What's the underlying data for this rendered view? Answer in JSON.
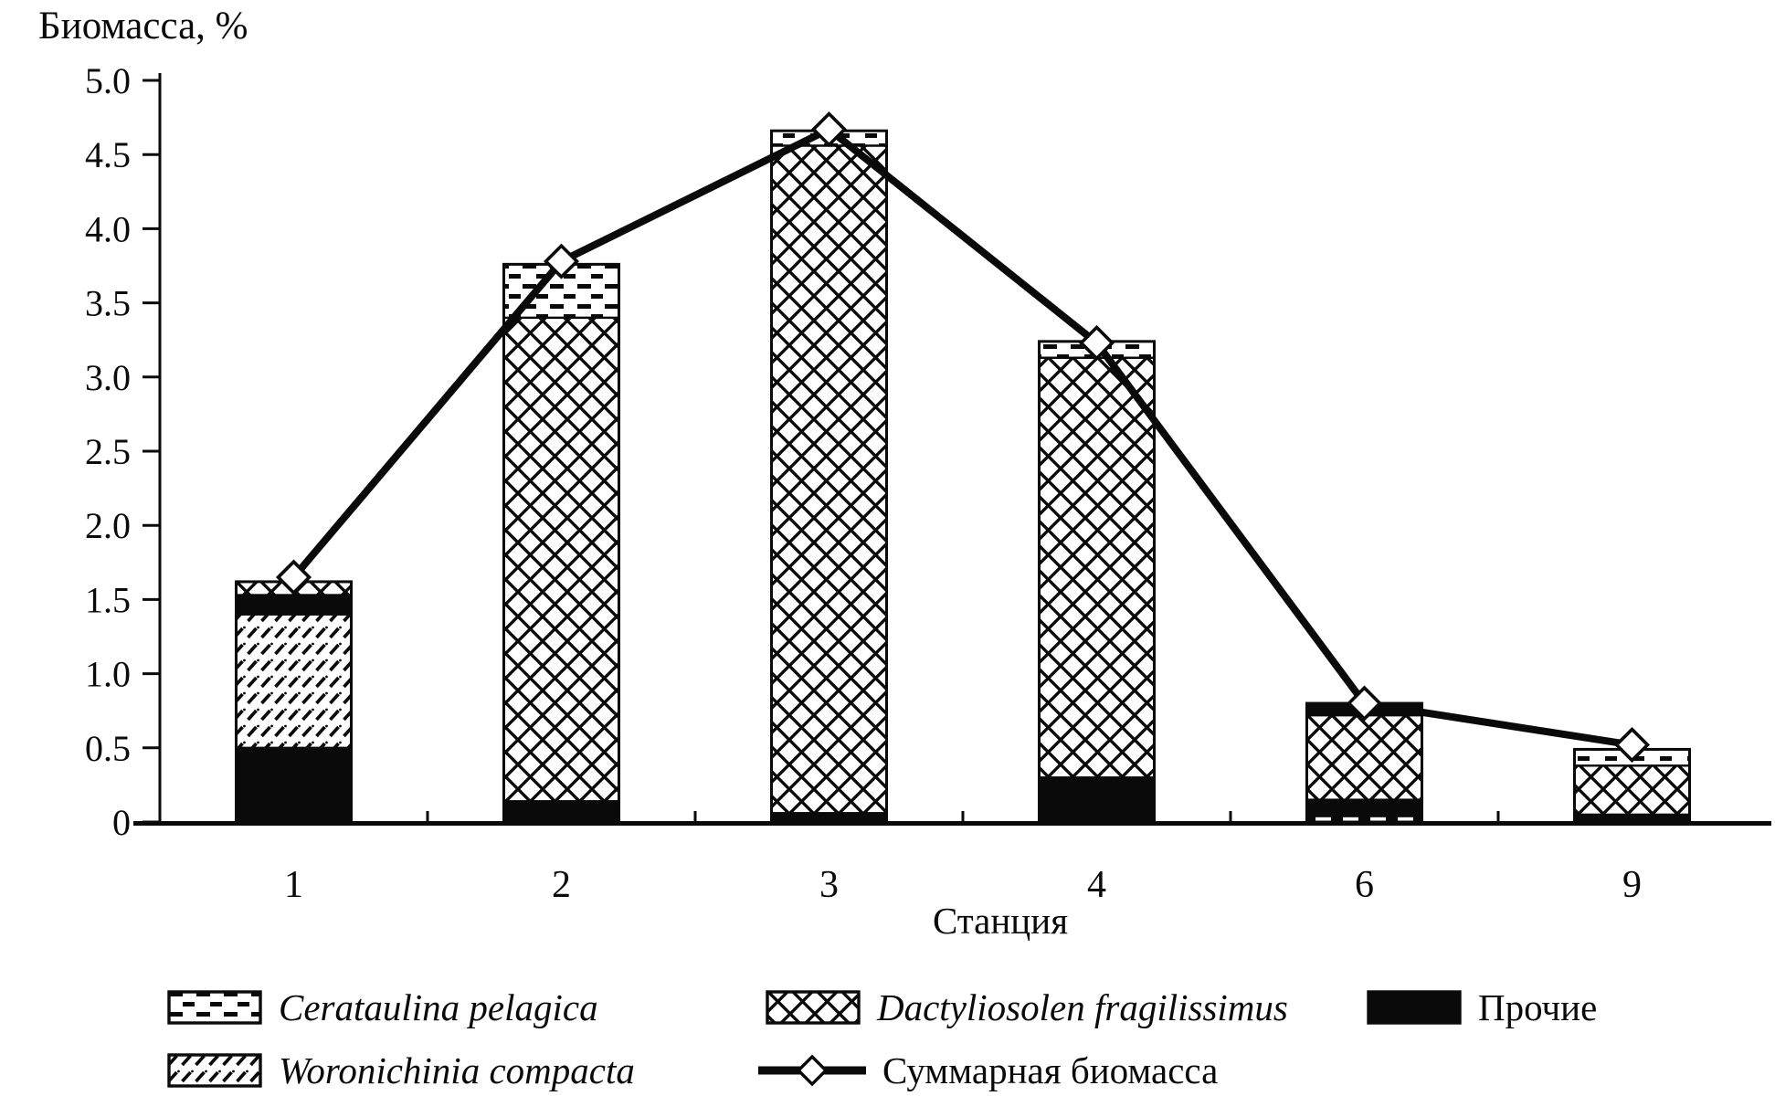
{
  "figure_title": "Биомасса, %",
  "chart_data": {
    "type": "bar",
    "subtype": "stacked-bar-with-total-line",
    "title": "Биомасса, %",
    "xlabel": "Станция",
    "ylabel": "Биомасса, %",
    "categories": [
      "1",
      "2",
      "3",
      "4",
      "6",
      "9"
    ],
    "ylim": [
      0,
      5.0
    ],
    "ytick_step": 0.5,
    "yticks": [
      {
        "label": "5.0",
        "value": 5.0
      },
      {
        "label": "4.5",
        "value": 4.5
      },
      {
        "label": "4.0",
        "value": 4.0
      },
      {
        "label": "3.5",
        "value": 3.5
      },
      {
        "label": "3.0",
        "value": 3.0
      },
      {
        "label": "2.5",
        "value": 2.5
      },
      {
        "label": "2.0",
        "value": 2.0
      },
      {
        "label": "1.5",
        "value": 1.5
      },
      {
        "label": "1.0",
        "value": 1.0
      },
      {
        "label": "0.5",
        "value": 0.5
      },
      {
        "label": "0",
        "value": 0
      }
    ],
    "grid": false,
    "series": [
      {
        "key": "cerataulina",
        "name": "Cerataulina pelagica",
        "pattern": "dashed-rows"
      },
      {
        "key": "dactyliosolen",
        "name": "Dactyliosolen fragilissimus",
        "pattern": "crosshatch"
      },
      {
        "key": "woronichinia",
        "name": "Woronichinia compacta",
        "pattern": "diagonal-hatch"
      },
      {
        "key": "others",
        "name": "Прочие",
        "pattern": "solid-black"
      }
    ],
    "bars": [
      {
        "category": "1",
        "total": 1.62,
        "segments_bottom_to_top": [
          {
            "series": "others",
            "value": 0.5
          },
          {
            "series": "woronichinia",
            "value": 0.9
          },
          {
            "series": "others",
            "value": 0.13
          },
          {
            "series": "dactyliosolen",
            "value": 0.09
          }
        ]
      },
      {
        "category": "2",
        "total": 3.76,
        "segments_bottom_to_top": [
          {
            "series": "others",
            "value": 0.14
          },
          {
            "series": "dactyliosolen",
            "value": 3.26
          },
          {
            "series": "cerataulina",
            "value": 0.36
          }
        ]
      },
      {
        "category": "3",
        "total": 4.66,
        "segments_bottom_to_top": [
          {
            "series": "others",
            "value": 0.06
          },
          {
            "series": "dactyliosolen",
            "value": 4.5
          },
          {
            "series": "cerataulina",
            "value": 0.1
          }
        ]
      },
      {
        "category": "4",
        "total": 3.24,
        "segments_bottom_to_top": [
          {
            "series": "others",
            "value": 0.3
          },
          {
            "series": "dactyliosolen",
            "value": 2.83
          },
          {
            "series": "cerataulina",
            "value": 0.11
          }
        ]
      },
      {
        "category": "6",
        "total": 0.8,
        "segments_bottom_to_top": [
          {
            "series": "cerataulina",
            "value": 0.04
          },
          {
            "series": "others",
            "value": 0.11
          },
          {
            "series": "dactyliosolen",
            "value": 0.57
          },
          {
            "series": "others",
            "value": 0.08
          }
        ]
      },
      {
        "category": "9",
        "total": 0.49,
        "segments_bottom_to_top": [
          {
            "series": "others",
            "value": 0.05
          },
          {
            "series": "dactyliosolen",
            "value": 0.33
          },
          {
            "series": "cerataulina",
            "value": 0.11
          }
        ]
      }
    ],
    "line": {
      "name": "Суммарная биомасса",
      "values": [
        1.65,
        3.78,
        4.67,
        3.23,
        0.8,
        0.52
      ],
      "marker": "diamond-white"
    },
    "legend_position": "bottom",
    "colors": {
      "ink": "#0a0a0a",
      "background": "#ffffff"
    }
  },
  "legend": {
    "items": [
      {
        "label": "Cerataulina pelagica",
        "swatch": "dashed-rows",
        "italic": true
      },
      {
        "label": "Dactyliosolen fragilissimus",
        "swatch": "crosshatch",
        "italic": true
      },
      {
        "label": "Прочие",
        "swatch": "solid-black",
        "italic": false
      },
      {
        "label": "Woronichinia compacta",
        "swatch": "diagonal-hatch",
        "italic": true
      },
      {
        "label": "Суммарная биомасса",
        "swatch": "line-diamond",
        "italic": false
      }
    ]
  }
}
